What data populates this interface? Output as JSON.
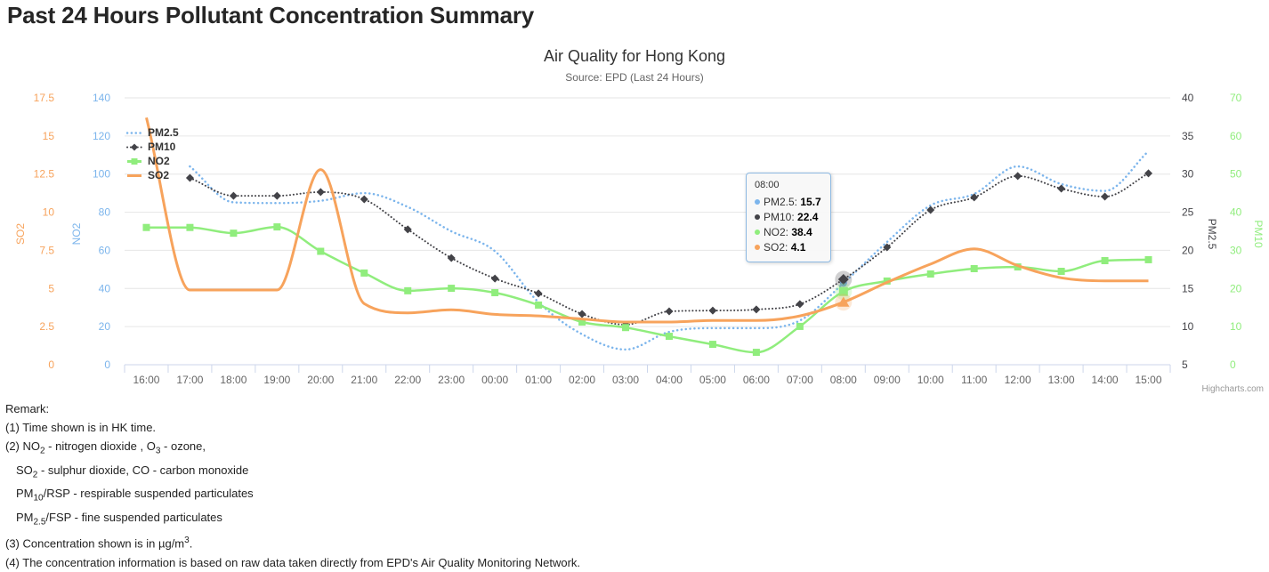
{
  "page": {
    "title": "Past 24 Hours Pollutant Concentration Summary"
  },
  "chart": {
    "title": "Air Quality for Hong Kong",
    "subtitle": "Source: EPD (Last 24 Hours)",
    "credit": "Highcharts.com",
    "colors": {
      "grid": "#e6e6e6",
      "axis_line": "#ccd6eb",
      "x_label": "#666666",
      "title": "#333333",
      "subtitle": "#666666",
      "credit": "#999999",
      "tooltip_border": "#8db9e2"
    },
    "tooltip": {
      "header": "08:00",
      "rows": [
        {
          "label": "PM2.5",
          "value": "15.7",
          "color": "#7cb5ec"
        },
        {
          "label": "PM10",
          "value": "22.4",
          "color": "#434348"
        },
        {
          "label": "NO2",
          "value": "38.4",
          "color": "#90ed7d"
        },
        {
          "label": "SO2",
          "value": "4.1",
          "color": "#f7a35c"
        }
      ]
    }
  },
  "chart_data": {
    "type": "line",
    "title": "Air Quality for Hong Kong",
    "subtitle": "Source: EPD (Last 24 Hours)",
    "grid": true,
    "legend_position": "top-left",
    "hover_index": 16,
    "categories": [
      "16:00",
      "17:00",
      "18:00",
      "19:00",
      "20:00",
      "21:00",
      "22:00",
      "23:00",
      "00:00",
      "01:00",
      "02:00",
      "03:00",
      "04:00",
      "05:00",
      "06:00",
      "07:00",
      "08:00",
      "09:00",
      "10:00",
      "11:00",
      "12:00",
      "13:00",
      "14:00",
      "15:00"
    ],
    "axes": {
      "so2": {
        "title": "SO2",
        "color": "#f7a35c",
        "min": 0,
        "max": 17.5,
        "ticks": [
          0,
          2.5,
          5,
          7.5,
          10,
          12.5,
          15,
          17.5
        ],
        "side": "left"
      },
      "no2": {
        "title": "NO2",
        "color": "#7cb5ec",
        "min": 0,
        "max": 140,
        "ticks": [
          0,
          20,
          40,
          60,
          80,
          100,
          120,
          140
        ],
        "side": "left"
      },
      "pm25": {
        "title": "PM2.5",
        "color": "#434348",
        "min": 5,
        "max": 40,
        "ticks": [
          5,
          10,
          15,
          20,
          25,
          30,
          35,
          40
        ],
        "side": "right"
      },
      "pm10": {
        "title": "PM10",
        "color": "#90ed7d",
        "min": 0,
        "max": 70,
        "ticks": [
          0,
          10,
          20,
          30,
          40,
          50,
          60,
          70
        ],
        "side": "right"
      }
    },
    "series": [
      {
        "name": "PM2.5",
        "color": "#7cb5ec",
        "axis": "pm25",
        "style": "dot",
        "width": 2.5,
        "marker": "circle",
        "show_markers": false,
        "values": [
          null,
          31,
          26.3,
          26.2,
          26.5,
          27.5,
          25.7,
          22.5,
          19.9,
          13.2,
          9,
          7,
          9.3,
          9.8,
          9.8,
          10.8,
          15.7,
          21.1,
          25.9,
          27.4,
          31,
          28.7,
          27.8,
          33
        ]
      },
      {
        "name": "PM10",
        "color": "#434348",
        "axis": "pm10",
        "style": "dot",
        "width": 2,
        "marker": "diamond",
        "show_markers": true,
        "values": [
          null,
          49,
          44.3,
          44.3,
          45.3,
          43.4,
          35.5,
          28,
          22.6,
          18.7,
          13.3,
          10.5,
          14,
          14.2,
          14.5,
          15.9,
          22.4,
          30.8,
          40.6,
          43.9,
          49.5,
          46.2,
          44.1,
          50.2
        ]
      },
      {
        "name": "NO2",
        "color": "#90ed7d",
        "axis": "no2",
        "style": "solid",
        "width": 2.5,
        "marker": "square",
        "show_markers": true,
        "values": [
          72,
          72,
          69,
          72.3,
          59.5,
          48.1,
          38.8,
          40.1,
          37.8,
          31.3,
          22.4,
          19.5,
          14.9,
          10.7,
          6.5,
          20.1,
          38.4,
          43.9,
          47.6,
          50.4,
          51.3,
          49,
          54.6,
          55.1
        ]
      },
      {
        "name": "SO2",
        "color": "#f7a35c",
        "axis": "so2",
        "style": "solid",
        "width": 3,
        "marker": "triangle",
        "show_markers": false,
        "values": [
          16.2,
          4.9,
          4.9,
          4.9,
          12.8,
          4,
          3.4,
          3.6,
          3.3,
          3.2,
          3,
          2.8,
          2.8,
          2.9,
          2.9,
          3.2,
          4.1,
          5.4,
          6.6,
          7.6,
          6.5,
          5.7,
          5.5,
          5.5
        ]
      }
    ]
  },
  "remark": {
    "lines": [
      {
        "indent": false,
        "parts": [
          [
            "t",
            "Remark:"
          ]
        ]
      },
      {
        "indent": false,
        "parts": [
          [
            "t",
            "(1) Time shown is in HK time."
          ]
        ]
      },
      {
        "indent": false,
        "parts": [
          [
            "t",
            "(2) NO"
          ],
          [
            "sub",
            "2"
          ],
          [
            "t",
            " - nitrogen dioxide , O"
          ],
          [
            "sub",
            "3"
          ],
          [
            "t",
            " - ozone,"
          ]
        ]
      },
      {
        "indent": true,
        "parts": [
          [
            "t",
            "SO"
          ],
          [
            "sub",
            "2"
          ],
          [
            "t",
            " - sulphur dioxide, CO - carbon monoxide"
          ]
        ]
      },
      {
        "indent": true,
        "parts": [
          [
            "t",
            "PM"
          ],
          [
            "sub",
            "10"
          ],
          [
            "t",
            "/RSP - respirable suspended particulates"
          ]
        ]
      },
      {
        "indent": true,
        "parts": [
          [
            "t",
            "PM"
          ],
          [
            "sub",
            "2.5"
          ],
          [
            "t",
            "/FSP - fine suspended particulates"
          ]
        ]
      },
      {
        "indent": false,
        "parts": [
          [
            "t",
            "(3) Concentration shown is in µg/m"
          ],
          [
            "sup",
            "3"
          ],
          [
            "t",
            "."
          ]
        ]
      },
      {
        "indent": false,
        "parts": [
          [
            "t",
            "(4) The concentration information is based on raw data taken directly from EPD's Air Quality Monitoring Network."
          ]
        ]
      }
    ]
  }
}
